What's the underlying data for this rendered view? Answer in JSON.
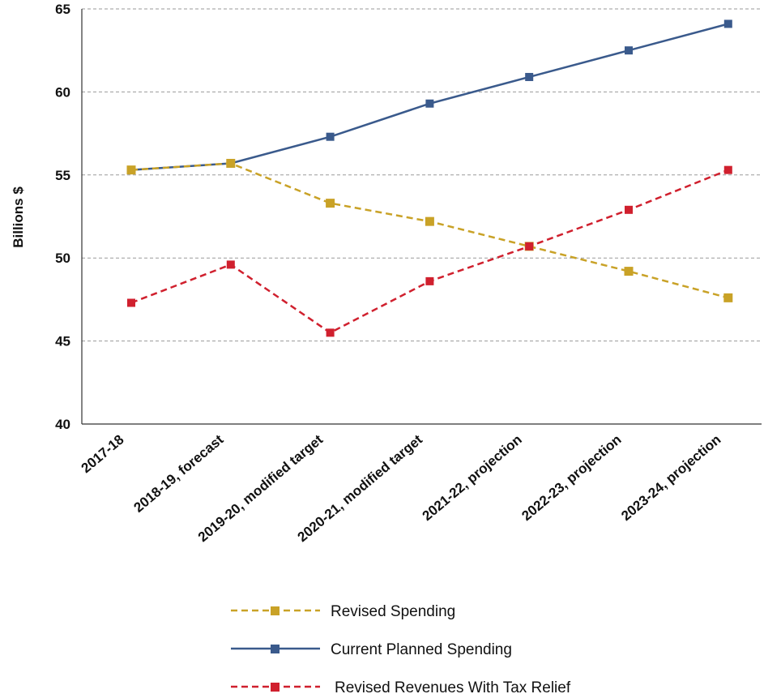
{
  "chart_data": {
    "type": "line",
    "ylabel": "Billions $",
    "ylim": [
      40,
      65
    ],
    "yticks": [
      "40",
      "45",
      "50",
      "55",
      "60",
      "65"
    ],
    "grid": "horizontal dashed",
    "legend_position": "bottom",
    "categories": [
      "2017-18",
      "2018-19, forecast",
      "2019-20, modified target",
      "2020-21, modified target",
      "2021-22, projection",
      "2022-23, projection",
      "2023-24, projection"
    ],
    "series": [
      {
        "name": "Revised Spending",
        "color": "#c9a227",
        "dashed": true,
        "values": [
          55.3,
          55.7,
          53.3,
          52.2,
          50.7,
          49.2,
          47.6
        ]
      },
      {
        "name": "Current Planned Spending",
        "color": "#3a5a8c",
        "dashed": false,
        "values": [
          55.3,
          55.7,
          57.3,
          59.3,
          60.9,
          62.5,
          64.1
        ]
      },
      {
        "name": "Revised Revenues With Tax Relief",
        "color": "#d0202e",
        "dashed": true,
        "values": [
          47.3,
          49.6,
          45.5,
          48.6,
          50.7,
          52.9,
          55.3
        ]
      }
    ]
  }
}
